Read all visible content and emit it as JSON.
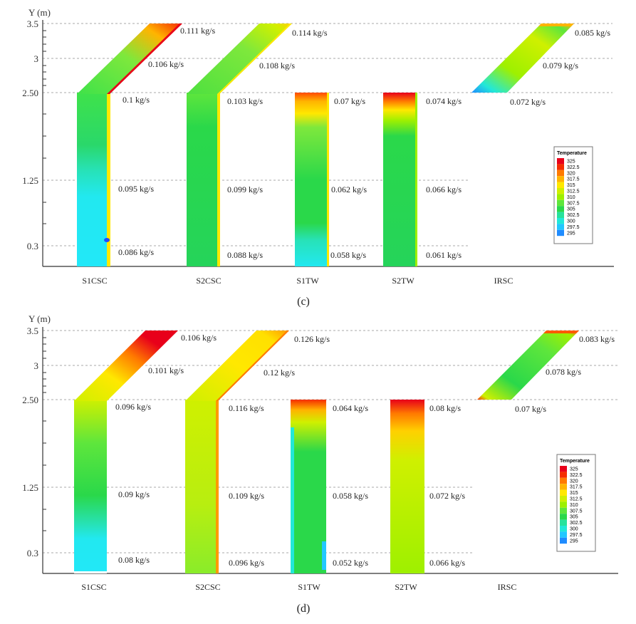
{
  "colors": {
    "scale": [
      "#e8001a",
      "#f52d00",
      "#ff7a00",
      "#ffb400",
      "#ffe800",
      "#cff000",
      "#9ef000",
      "#5ee63c",
      "#2ad84a",
      "#27e29c",
      "#22e8d8",
      "#22c8ff",
      "#1f8cff",
      "#1f4cff",
      "#1818c8"
    ],
    "grid": "#999999",
    "axis": "#333333"
  },
  "panels": [
    {
      "caption": "(c)",
      "y_axis_label": "Y (m)",
      "y_ticks": [
        "3.5",
        "3",
        "2.50",
        "1.25",
        "0.3"
      ],
      "legend": {
        "title": "Temperature",
        "values": [
          "325",
          "322.5",
          "320",
          "317.5",
          "315",
          "312.5",
          "310",
          "307.5",
          "305",
          "302.5",
          "300",
          "297.5",
          "295"
        ]
      },
      "columns": [
        {
          "name": "S1CSC",
          "type": "chimney",
          "flows": [
            "0.111 kg/s",
            "0.106 kg/s",
            "0.1 kg/s",
            "0.095 kg/s",
            "0.086 kg/s"
          ]
        },
        {
          "name": "S2CSC",
          "type": "chimney",
          "flows": [
            "0.114 kg/s",
            "0.108 kg/s",
            "0.103 kg/s",
            "0.099 kg/s",
            "0.088 kg/s"
          ]
        },
        {
          "name": "S1TW",
          "type": "wall",
          "flows": [
            "0.07 kg/s",
            "0.062 kg/s",
            "0.058 kg/s"
          ]
        },
        {
          "name": "S2TW",
          "type": "wall",
          "flows": [
            "0.074 kg/s",
            "0.066 kg/s",
            "0.061 kg/s"
          ]
        },
        {
          "name": "IRSC",
          "type": "roof",
          "flows": [
            "0.085 kg/s",
            "0.079 kg/s",
            "0.072 kg/s"
          ]
        }
      ]
    },
    {
      "caption": "(d)",
      "y_axis_label": "Y (m)",
      "y_ticks": [
        "3.5",
        "3",
        "2.50",
        "1.25",
        "0.3"
      ],
      "legend": {
        "title": "Temperature",
        "values": [
          "325",
          "322.5",
          "320",
          "317.5",
          "315",
          "312.5",
          "310",
          "307.5",
          "305",
          "302.5",
          "300",
          "297.5",
          "295"
        ]
      },
      "columns": [
        {
          "name": "S1CSC",
          "type": "chimney",
          "flows": [
            "0.106 kg/s",
            "0.101 kg/s",
            "0.096 kg/s",
            "0.09 kg/s",
            "0.08 kg/s"
          ]
        },
        {
          "name": "S2CSC",
          "type": "chimney",
          "flows": [
            "0.126 kg/s",
            "0.12 kg/s",
            "0.116 kg/s",
            "0.109 kg/s",
            "0.096 kg/s"
          ]
        },
        {
          "name": "S1TW",
          "type": "wall",
          "flows": [
            "0.064 kg/s",
            "0.058 kg/s",
            "0.052 kg/s"
          ]
        },
        {
          "name": "S2TW",
          "type": "wall",
          "flows": [
            "0.08 kg/s",
            "0.072 kg/s",
            "0.066 kg/s"
          ]
        },
        {
          "name": "IRSC",
          "type": "roof",
          "flows": [
            "0.083 kg/s",
            "0.078 kg/s",
            "0.07 kg/s"
          ]
        }
      ]
    }
  ]
}
